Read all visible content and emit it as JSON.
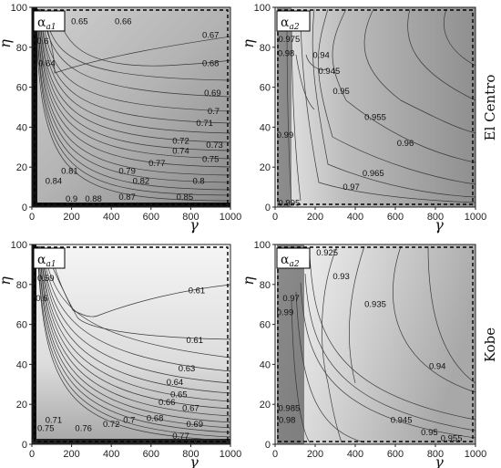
{
  "chart_data": [
    {
      "type": "contour",
      "panel": "top-left",
      "box_label": "α_a1",
      "box_label_main": "α",
      "box_label_sub": "a1",
      "xlabel": "γ",
      "ylabel": "η",
      "xlim": [
        0,
        1000
      ],
      "ylim": [
        0,
        100
      ],
      "xticks": [
        "0",
        "200",
        "400",
        "600",
        "800",
        "1000"
      ],
      "yticks": [
        "0",
        "20",
        "40",
        "60",
        "80",
        "100"
      ],
      "contour_labels": [
        {
          "text": "0.65",
          "x": 240,
          "y": 93
        },
        {
          "text": "0.66",
          "x": 460,
          "y": 93
        },
        {
          "text": "0.6",
          "x": 55,
          "y": 83
        },
        {
          "text": "0.64",
          "x": 75,
          "y": 72
        },
        {
          "text": "0.67",
          "x": 900,
          "y": 86
        },
        {
          "text": "0.68",
          "x": 900,
          "y": 72
        },
        {
          "text": "0.69",
          "x": 910,
          "y": 57
        },
        {
          "text": "0.7",
          "x": 915,
          "y": 48
        },
        {
          "text": "0.71",
          "x": 870,
          "y": 42
        },
        {
          "text": "0.72",
          "x": 750,
          "y": 33
        },
        {
          "text": "0.73",
          "x": 920,
          "y": 31
        },
        {
          "text": "0.74",
          "x": 750,
          "y": 28
        },
        {
          "text": "0.75",
          "x": 900,
          "y": 24
        },
        {
          "text": "0.77",
          "x": 630,
          "y": 22
        },
        {
          "text": "0.79",
          "x": 480,
          "y": 18
        },
        {
          "text": "0.81",
          "x": 190,
          "y": 18
        },
        {
          "text": "0.8",
          "x": 840,
          "y": 13
        },
        {
          "text": "0.82",
          "x": 550,
          "y": 13
        },
        {
          "text": "0.84",
          "x": 110,
          "y": 13
        },
        {
          "text": "0.87",
          "x": 480,
          "y": 5
        },
        {
          "text": "0.85",
          "x": 770,
          "y": 5
        },
        {
          "text": "0.9",
          "x": 200,
          "y": 4
        },
        {
          "text": "0.88",
          "x": 310,
          "y": 4
        }
      ]
    },
    {
      "type": "contour",
      "panel": "top-right",
      "box_label": "α_a2",
      "box_label_main": "α",
      "box_label_sub": "a2",
      "xlabel": "γ",
      "ylabel": "η",
      "xlim": [
        0,
        1000
      ],
      "ylim": [
        0,
        100
      ],
      "xticks": [
        "0",
        "200",
        "400",
        "600",
        "800",
        "1000"
      ],
      "yticks": [
        "0",
        "20",
        "40",
        "60",
        "80",
        "100"
      ],
      "contour_labels": [
        {
          "text": "0.975",
          "x": 70,
          "y": 84
        },
        {
          "text": "0.98",
          "x": 55,
          "y": 77
        },
        {
          "text": "0.94",
          "x": 230,
          "y": 76
        },
        {
          "text": "0.945",
          "x": 270,
          "y": 68
        },
        {
          "text": "0.95",
          "x": 330,
          "y": 58
        },
        {
          "text": "0.955",
          "x": 500,
          "y": 45
        },
        {
          "text": "0.99",
          "x": 50,
          "y": 36
        },
        {
          "text": "0.96",
          "x": 650,
          "y": 32
        },
        {
          "text": "0.965",
          "x": 490,
          "y": 17
        },
        {
          "text": "0.97",
          "x": 380,
          "y": 10
        },
        {
          "text": "0.995",
          "x": 70,
          "y": 2
        }
      ]
    },
    {
      "type": "contour",
      "panel": "bottom-left",
      "box_label": "α_a1",
      "box_label_main": "α",
      "box_label_sub": "a1",
      "xlabel": "γ",
      "ylabel": "η",
      "xlim": [
        0,
        1000
      ],
      "ylim": [
        0,
        100
      ],
      "xticks": [
        "0",
        "200",
        "400",
        "600",
        "800",
        "1000"
      ],
      "yticks": [
        "0",
        "20",
        "40",
        "60",
        "80",
        "100"
      ],
      "contour_labels": [
        {
          "text": "0.59",
          "x": 70,
          "y": 83
        },
        {
          "text": "0.6",
          "x": 50,
          "y": 73
        },
        {
          "text": "0.61",
          "x": 830,
          "y": 77
        },
        {
          "text": "0.61",
          "x": 820,
          "y": 52
        },
        {
          "text": "0.63",
          "x": 780,
          "y": 38
        },
        {
          "text": "0.64",
          "x": 720,
          "y": 31
        },
        {
          "text": "0.65",
          "x": 740,
          "y": 25
        },
        {
          "text": "0.66",
          "x": 680,
          "y": 21
        },
        {
          "text": "0.67",
          "x": 800,
          "y": 18
        },
        {
          "text": "0.68",
          "x": 620,
          "y": 13
        },
        {
          "text": "0.69",
          "x": 820,
          "y": 10
        },
        {
          "text": "0.7",
          "x": 490,
          "y": 12
        },
        {
          "text": "0.71",
          "x": 110,
          "y": 12
        },
        {
          "text": "0.72",
          "x": 400,
          "y": 10
        },
        {
          "text": "0.75",
          "x": 70,
          "y": 8
        },
        {
          "text": "0.76",
          "x": 260,
          "y": 8
        },
        {
          "text": "0.77",
          "x": 750,
          "y": 4
        }
      ]
    },
    {
      "type": "contour",
      "panel": "bottom-right",
      "box_label": "α_a2",
      "box_label_main": "α",
      "box_label_sub": "a2",
      "xlabel": "γ",
      "ylabel": "η",
      "xlim": [
        0,
        1000
      ],
      "ylim": [
        0,
        100
      ],
      "xticks": [
        "0",
        "200",
        "400",
        "600",
        "800",
        "1000"
      ],
      "yticks": [
        "0",
        "20",
        "40",
        "60",
        "80",
        "100"
      ],
      "contour_labels": [
        {
          "text": "0.925",
          "x": 260,
          "y": 96
        },
        {
          "text": "0.93",
          "x": 330,
          "y": 84
        },
        {
          "text": "0.97",
          "x": 80,
          "y": 73
        },
        {
          "text": "0.99",
          "x": 50,
          "y": 66
        },
        {
          "text": "0.935",
          "x": 500,
          "y": 70
        },
        {
          "text": "0.94",
          "x": 810,
          "y": 39
        },
        {
          "text": "0.985",
          "x": 70,
          "y": 18
        },
        {
          "text": "0.98",
          "x": 60,
          "y": 12
        },
        {
          "text": "0.945",
          "x": 630,
          "y": 12
        },
        {
          "text": "0.95",
          "x": 770,
          "y": 6
        },
        {
          "text": "0.955",
          "x": 880,
          "y": 3
        }
      ]
    }
  ],
  "row_labels": [
    "El Centro",
    "Kobe"
  ]
}
